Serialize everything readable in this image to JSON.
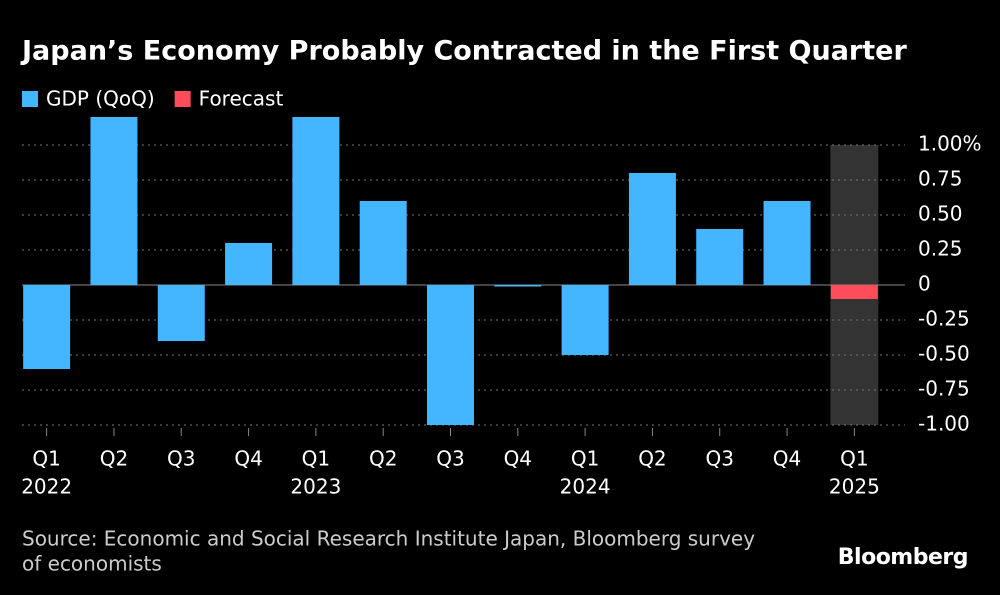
{
  "chart_data": {
    "type": "bar",
    "title": "Japan’s Economy Probably Contracted in the First Quarter",
    "categories": [
      "Q1",
      "Q2",
      "Q3",
      "Q4",
      "Q1",
      "Q2",
      "Q3",
      "Q4",
      "Q1",
      "Q2",
      "Q3",
      "Q4",
      "Q1"
    ],
    "years": [
      "2022",
      null,
      null,
      null,
      "2023",
      null,
      null,
      null,
      "2024",
      null,
      null,
      null,
      "2025"
    ],
    "series": [
      {
        "name": "GDP (QoQ)",
        "color": "#44b6ff",
        "values": [
          -0.6,
          1.2,
          -0.4,
          0.3,
          1.2,
          0.6,
          -1.0,
          -0.01,
          -0.5,
          0.8,
          0.4,
          0.6,
          null
        ]
      },
      {
        "name": "Forecast",
        "color": "#ff4c5b",
        "values": [
          null,
          null,
          null,
          null,
          null,
          null,
          null,
          null,
          null,
          null,
          null,
          null,
          -0.1
        ]
      }
    ],
    "ylim": [
      -1,
      1.2
    ],
    "yticks": [
      {
        "value": 1,
        "label": "1.00%"
      },
      {
        "value": 0.75,
        "label": "0.75"
      },
      {
        "value": 0.5,
        "label": "0.50"
      },
      0.25,
      0,
      -0.25,
      {
        "value": -0.5,
        "label": "-0.50"
      },
      -0.75,
      {
        "value": -1,
        "label": "-1.00"
      }
    ],
    "grid": true,
    "source": "Source: Economic and Social Research Institute Japan, Bloomberg survey",
    "source_2": "of economists",
    "brand": "Bloomberg"
  }
}
